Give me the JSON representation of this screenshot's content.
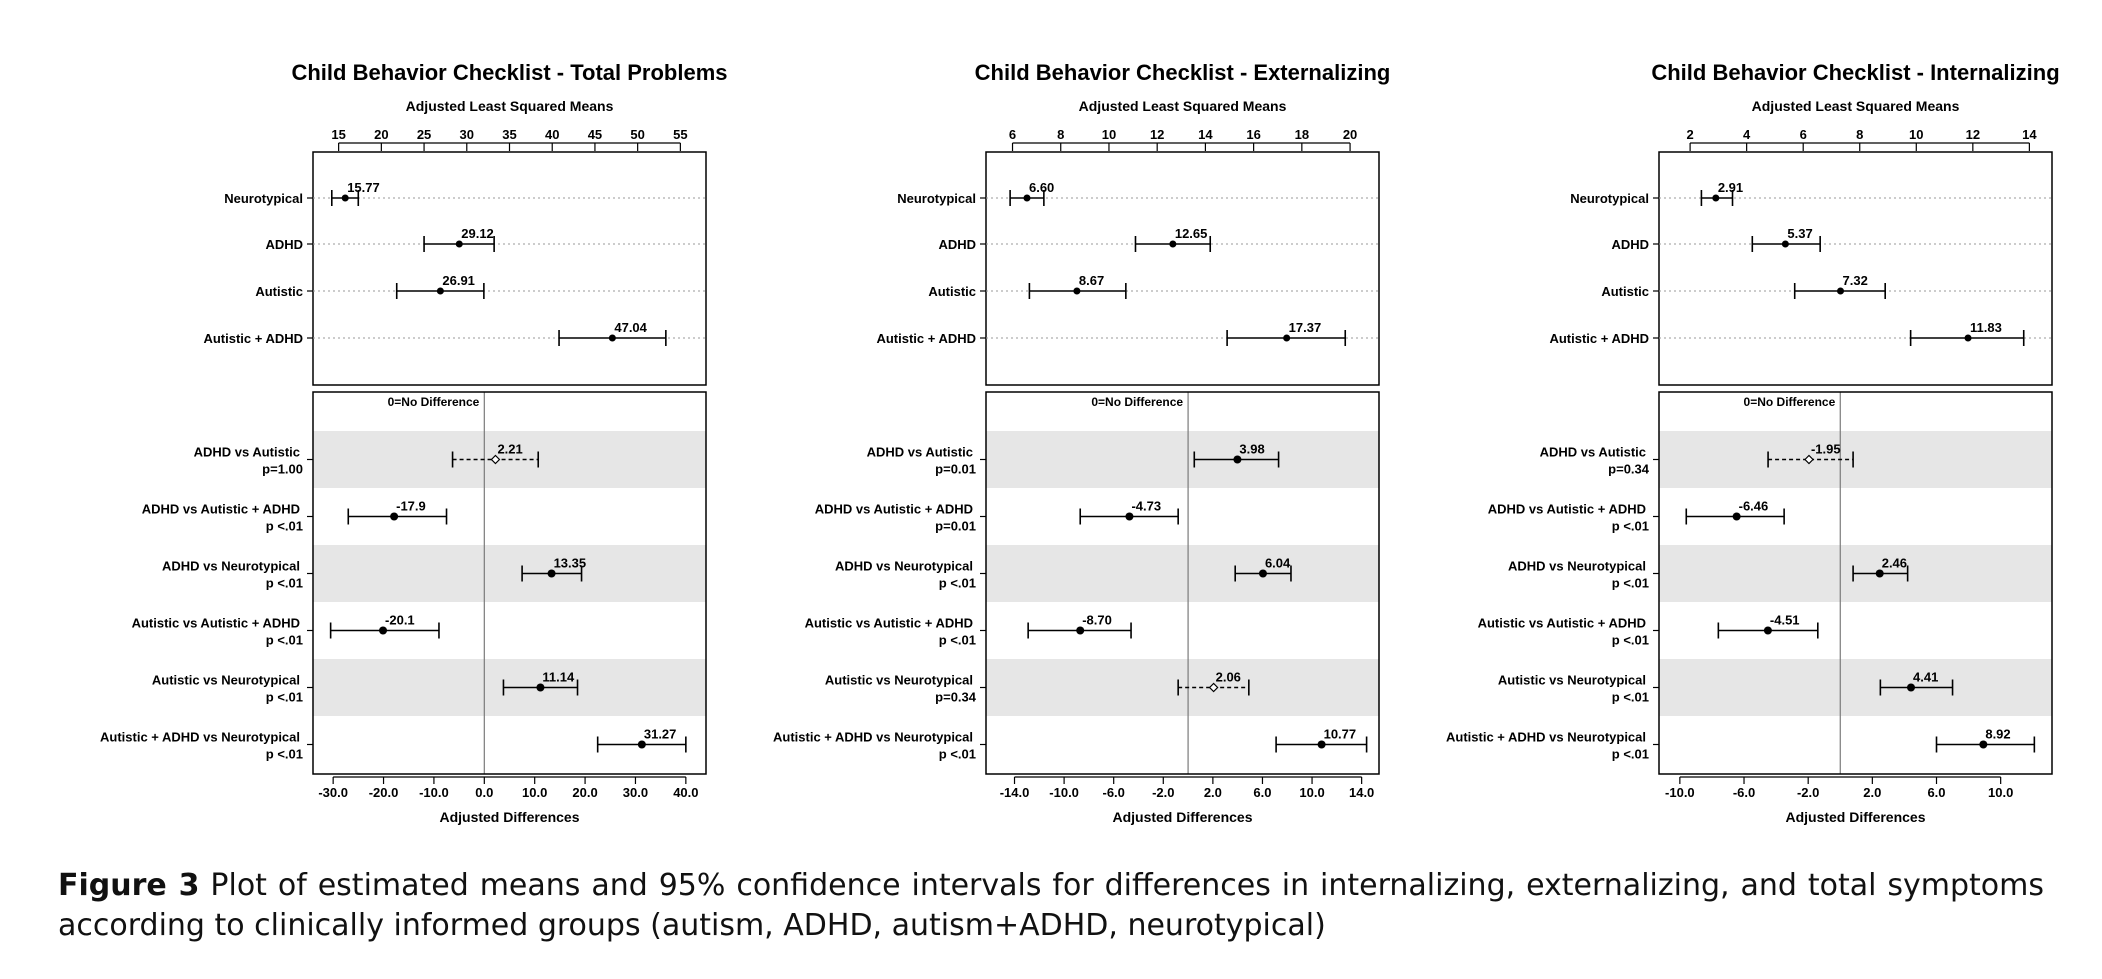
{
  "chart_data": [
    {
      "type": "forest",
      "title": "Child Behavior Checklist - Total Problems",
      "means": {
        "axis_label": "Adjusted Least Squared Means",
        "ticks": [
          15,
          20,
          25,
          30,
          35,
          40,
          45,
          50,
          55
        ],
        "xlim": [
          12,
          58
        ],
        "groups": [
          {
            "label": "Neurotypical",
            "mean": 15.77,
            "value_label": "15.77",
            "ci": [
              14.2,
              17.3
            ]
          },
          {
            "label": "ADHD",
            "mean": 29.12,
            "value_label": "29.12",
            "ci": [
              25.0,
              33.2
            ]
          },
          {
            "label": "Autistic",
            "mean": 26.91,
            "value_label": "26.91",
            "ci": [
              21.8,
              32.0
            ]
          },
          {
            "label": "Autistic + ADHD",
            "mean": 47.04,
            "value_label": "47.04",
            "ci": [
              40.8,
              53.3
            ]
          }
        ]
      },
      "differences": {
        "axis_label": "Adjusted Differences",
        "ref_label": "0=No Difference",
        "ticks": [
          -30,
          -20,
          -10,
          0,
          10,
          20,
          30,
          40
        ],
        "tick_labels": [
          "-30.0",
          "-20.0",
          "-10.0",
          "0.0",
          "10.0",
          "20.0",
          "30.0",
          "40.0"
        ],
        "xlim": [
          -34,
          44
        ],
        "comparisons": [
          {
            "label": "ADHD  vs Autistic",
            "p": "p=1.00",
            "diff": 2.21,
            "value_label": "2.21",
            "ci": [
              -6.3,
              10.7
            ],
            "significant": false
          },
          {
            "label": "ADHD  vs Autistic + ADHD",
            "p": "p <.01",
            "diff": -17.9,
            "value_label": "-17.9",
            "ci": [
              -27.0,
              -7.5
            ],
            "significant": true
          },
          {
            "label": "ADHD  vs Neurotypical",
            "p": "p <.01",
            "diff": 13.35,
            "value_label": "13.35",
            "ci": [
              7.5,
              19.3
            ],
            "significant": true
          },
          {
            "label": "Autistic vs Autistic + ADHD",
            "p": "p <.01",
            "diff": -20.1,
            "value_label": "-20.1",
            "ci": [
              -30.5,
              -9.0
            ],
            "significant": true
          },
          {
            "label": "Autistic vs Neurotypical",
            "p": "p <.01",
            "diff": 11.14,
            "value_label": "11.14",
            "ci": [
              3.8,
              18.5
            ],
            "significant": true
          },
          {
            "label": "Autistic + ADHD  vs Neurotypical",
            "p": "p <.01",
            "diff": 31.27,
            "value_label": "31.27",
            "ci": [
              22.5,
              40.0
            ],
            "significant": true
          }
        ]
      }
    },
    {
      "type": "forest",
      "title": "Child Behavior Checklist - Externalizing",
      "means": {
        "axis_label": "Adjusted Least Squared Means",
        "ticks": [
          6,
          8,
          10,
          12,
          14,
          16,
          18,
          20
        ],
        "xlim": [
          4.9,
          21.2
        ],
        "groups": [
          {
            "label": "Neurotypical",
            "mean": 6.6,
            "value_label": "6.60",
            "ci": [
              5.9,
              7.3
            ]
          },
          {
            "label": "ADHD",
            "mean": 12.65,
            "value_label": "12.65",
            "ci": [
              11.1,
              14.2
            ]
          },
          {
            "label": "Autistic",
            "mean": 8.67,
            "value_label": "8.67",
            "ci": [
              6.7,
              10.7
            ]
          },
          {
            "label": "Autistic + ADHD",
            "mean": 17.37,
            "value_label": "17.37",
            "ci": [
              14.9,
              19.8
            ]
          }
        ]
      },
      "differences": {
        "axis_label": "Adjusted Differences",
        "ref_label": "0=No Difference",
        "ticks": [
          -14,
          -10,
          -6,
          -2,
          2,
          6,
          10,
          14
        ],
        "tick_labels": [
          "-14.0",
          "-10.0",
          "-6.0",
          "-2.0",
          "2.0",
          "6.0",
          "10.0",
          "14.0"
        ],
        "xlim": [
          -16.3,
          15.4
        ],
        "comparisons": [
          {
            "label": "ADHD  vs Autistic",
            "p": "p=0.01",
            "diff": 3.98,
            "value_label": "3.98",
            "ci": [
              0.5,
              7.3
            ],
            "significant": true
          },
          {
            "label": "ADHD  vs Autistic + ADHD",
            "p": "p=0.01",
            "diff": -4.73,
            "value_label": "-4.73",
            "ci": [
              -8.7,
              -0.8
            ],
            "significant": true
          },
          {
            "label": "ADHD  vs Neurotypical",
            "p": "p <.01",
            "diff": 6.04,
            "value_label": "6.04",
            "ci": [
              3.8,
              8.3
            ],
            "significant": true
          },
          {
            "label": "Autistic vs Autistic + ADHD",
            "p": "p <.01",
            "diff": -8.7,
            "value_label": "-8.70",
            "ci": [
              -12.9,
              -4.6
            ],
            "significant": true
          },
          {
            "label": "Autistic vs Neurotypical",
            "p": "p=0.34",
            "diff": 2.06,
            "value_label": "2.06",
            "ci": [
              -0.8,
              4.9
            ],
            "significant": false
          },
          {
            "label": "Autistic + ADHD  vs Neurotypical",
            "p": "p <.01",
            "diff": 10.77,
            "value_label": "10.77",
            "ci": [
              7.1,
              14.4
            ],
            "significant": true
          }
        ]
      }
    },
    {
      "type": "forest",
      "title": "Child Behavior Checklist - Internalizing",
      "means": {
        "axis_label": "Adjusted Least Squared Means",
        "ticks": [
          2,
          4,
          6,
          8,
          10,
          12,
          14
        ],
        "xlim": [
          0.9,
          14.8
        ],
        "groups": [
          {
            "label": "Neurotypical",
            "mean": 2.91,
            "value_label": "2.91",
            "ci": [
              2.4,
              3.5
            ]
          },
          {
            "label": "ADHD",
            "mean": 5.37,
            "value_label": "5.37",
            "ci": [
              4.2,
              6.6
            ]
          },
          {
            "label": "Autistic",
            "mean": 7.32,
            "value_label": "7.32",
            "ci": [
              5.7,
              8.9
            ]
          },
          {
            "label": "Autistic + ADHD",
            "mean": 11.83,
            "value_label": "11.83",
            "ci": [
              9.8,
              13.8
            ]
          }
        ]
      },
      "differences": {
        "axis_label": "Adjusted Differences",
        "ref_label": "0=No Difference",
        "ticks": [
          -10,
          -6,
          -2,
          2,
          6,
          10
        ],
        "tick_labels": [
          "-10.0",
          "-6.0",
          "-2.0",
          "2.0",
          "6.0",
          "10.0"
        ],
        "xlim": [
          -11.3,
          13.2
        ],
        "comparisons": [
          {
            "label": "ADHD  vs Autistic",
            "p": "p=0.34",
            "diff": -1.95,
            "value_label": "-1.95",
            "ci": [
              -4.5,
              0.8
            ],
            "significant": false
          },
          {
            "label": "ADHD  vs Autistic + ADHD",
            "p": "p <.01",
            "diff": -6.46,
            "value_label": "-6.46",
            "ci": [
              -9.6,
              -3.5
            ],
            "significant": true
          },
          {
            "label": "ADHD  vs Neurotypical",
            "p": "p <.01",
            "diff": 2.46,
            "value_label": "2.46",
            "ci": [
              0.8,
              4.2
            ],
            "significant": true
          },
          {
            "label": "Autistic vs Autistic + ADHD",
            "p": "p <.01",
            "diff": -4.51,
            "value_label": "-4.51",
            "ci": [
              -7.6,
              -1.4
            ],
            "significant": true
          },
          {
            "label": "Autistic vs Neurotypical",
            "p": "p <.01",
            "diff": 4.41,
            "value_label": "4.41",
            "ci": [
              2.5,
              7.0
            ],
            "significant": true
          },
          {
            "label": "Autistic + ADHD  vs Neurotypical",
            "p": "p <.01",
            "diff": 8.92,
            "value_label": "8.92",
            "ci": [
              6.0,
              12.1
            ],
            "significant": true
          }
        ]
      }
    }
  ],
  "caption": {
    "label": "Figure 3",
    "text": " Plot of estimated means and 95% confidence intervals for differences in internalizing, externalizing, and total symptoms according to clinically informed groups (autism, ADHD, autism+ADHD, neurotypical)"
  }
}
